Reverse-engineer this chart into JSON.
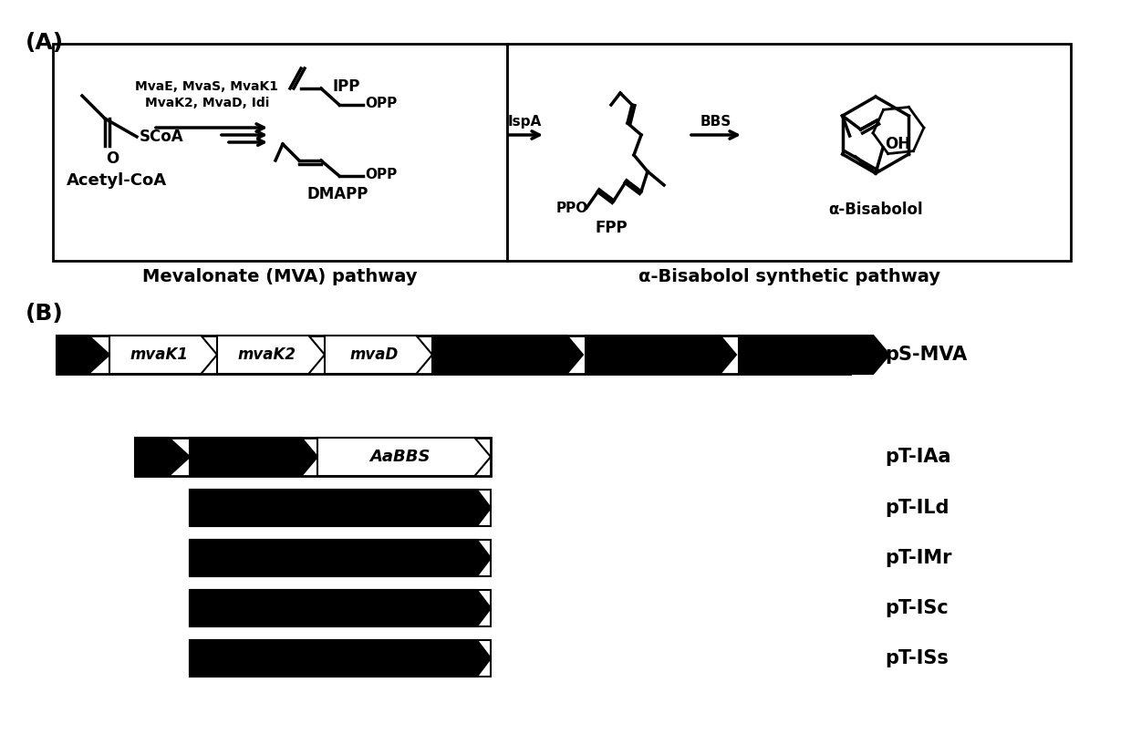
{
  "panel_A_label": "(A)",
  "panel_B_label": "(B)",
  "mva_pathway_label": "Mevalonate (MVA) pathway",
  "bisabolol_pathway_label": "α-Bisabolol synthetic pathway",
  "acetyl_coa_label": "Acetyl-CoA",
  "dmapp_label": "DMAPP",
  "ipp_label": "IPP",
  "fpp_label": "FPP",
  "bisabolol_label": "α-Bisabolol",
  "enzyme_label1": "MvaE, MvaS, MvaK1",
  "enzyme_label2": "MvaK2, MvaD, Idi",
  "ispa_label": "IspA",
  "bbs_label": "BBS",
  "plasmid_labels": [
    "pS-MVA",
    "pT-IAa",
    "pT-ILd",
    "pT-IMr",
    "pT-ISc",
    "pT-ISs"
  ],
  "gene_labels_psmva": [
    "mvaK1",
    "mvaK2",
    "mvaD"
  ],
  "aabbs_label": "AaBBS",
  "bg_color": "#ffffff",
  "box_color": "#000000",
  "fill_black": "#000000",
  "fill_white": "#ffffff"
}
